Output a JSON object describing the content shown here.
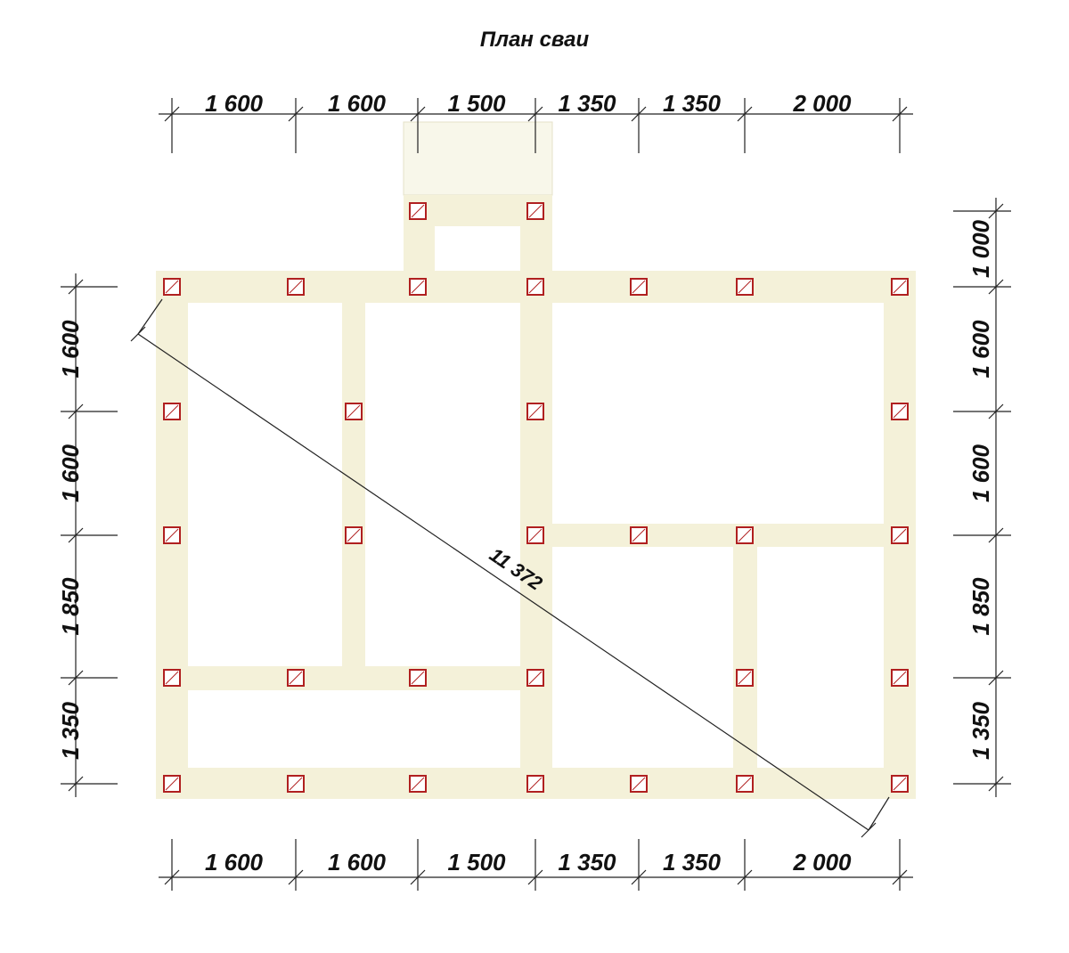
{
  "header": {
    "title": "План сваи"
  },
  "dimensions": {
    "top": [
      "1 600",
      "1 600",
      "1 500",
      "1 350",
      "1 350",
      "2 000"
    ],
    "bottom": [
      "1 600",
      "1 600",
      "1 500",
      "1 350",
      "1 350",
      "2 000"
    ],
    "left": [
      "1 600",
      "1 600",
      "1 850",
      "1 350"
    ],
    "right": [
      "1 000",
      "1 600",
      "1 600",
      "1 850",
      "1 350"
    ],
    "diagonal": "11 372"
  }
}
